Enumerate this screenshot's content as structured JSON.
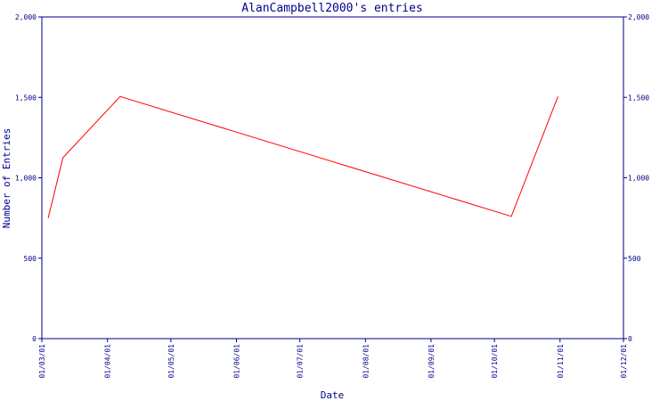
{
  "chart_data": {
    "type": "line",
    "title": "AlanCampbell2000's entries",
    "xlabel": "Date",
    "ylabel": "Number of Entries",
    "ylim": [
      0,
      2000
    ],
    "yticks": [
      0,
      500,
      1000,
      1500,
      2000
    ],
    "ytick_labels": [
      "0",
      "500",
      "1,000",
      "1,500",
      "2,000"
    ],
    "xlim": [
      "2001-03-01",
      "2001-12-01"
    ],
    "xticks": [
      "2001-03-01",
      "2001-04-01",
      "2001-05-01",
      "2001-06-01",
      "2001-07-01",
      "2001-08-01",
      "2001-09-01",
      "2001-10-01",
      "2001-11-01",
      "2001-12-01"
    ],
    "xtick_labels": [
      "01/03/01",
      "01/04/01",
      "01/05/01",
      "01/06/01",
      "01/07/01",
      "01/08/01",
      "01/09/01",
      "01/10/01",
      "01/11/01",
      "01/12/01"
    ],
    "series": [
      {
        "color": "#ff0000",
        "x": [
          "2001-03-04",
          "2001-03-11",
          "2001-04-07",
          "2001-10-09",
          "2001-10-31"
        ],
        "y": [
          750,
          1125,
          1505,
          760,
          1505
        ]
      }
    ],
    "grid": false,
    "secondary_y_axis": true
  }
}
